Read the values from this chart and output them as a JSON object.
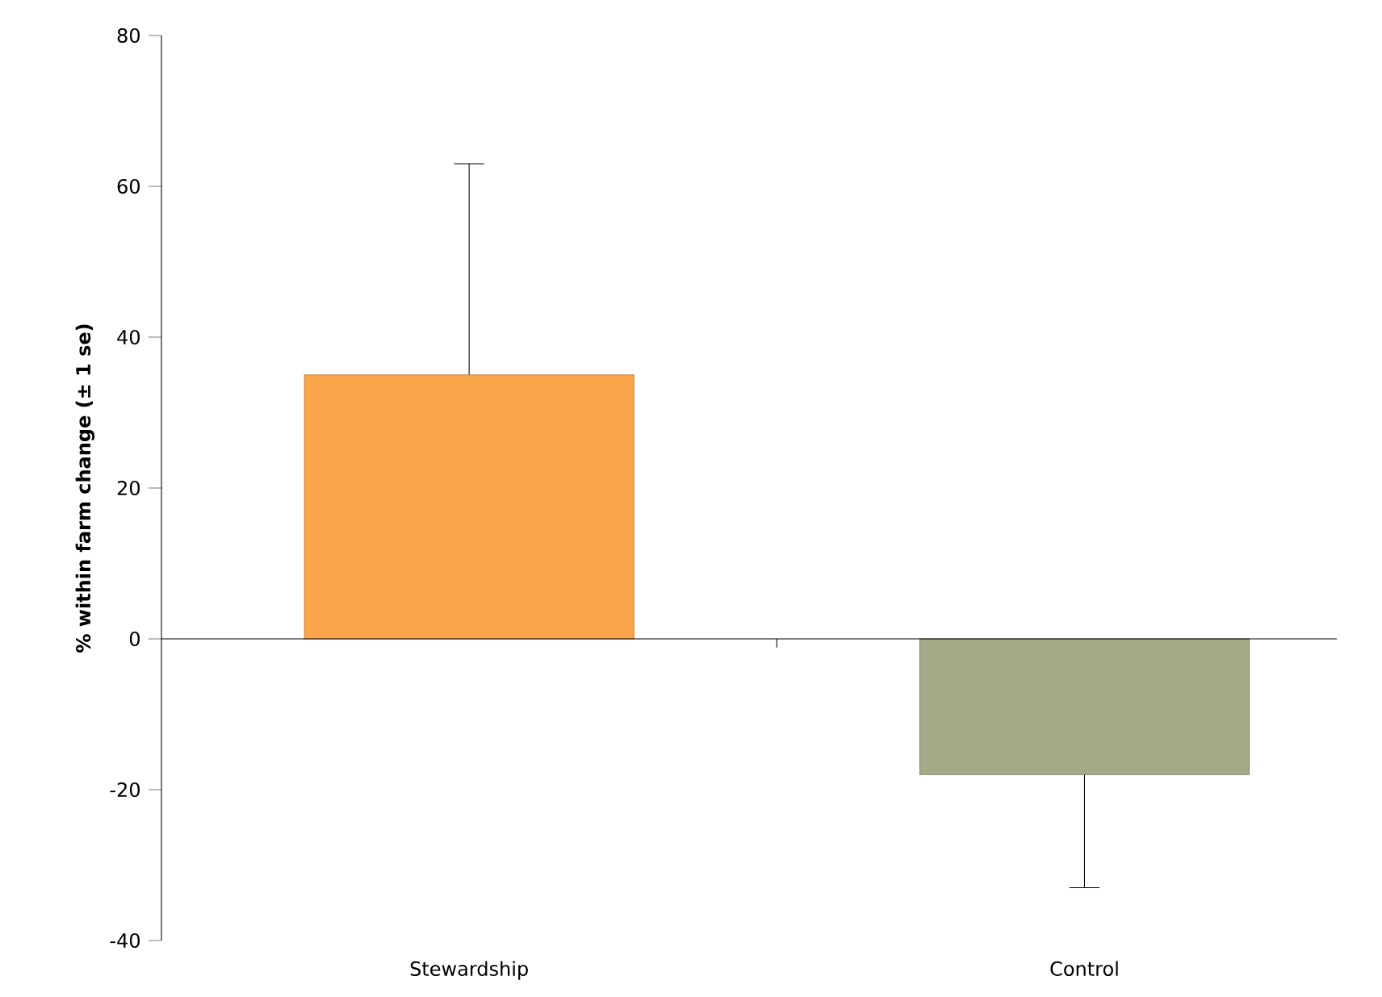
{
  "chart_data": {
    "type": "bar",
    "ylabel": "% within farm change (± 1 se)",
    "categories": [
      "Stewardship",
      "Control"
    ],
    "values": [
      35,
      -18
    ],
    "colors": [
      "#f9a54a",
      "#a3ab88"
    ],
    "errors": [
      [
        35,
        63
      ],
      [
        -33,
        -18
      ]
    ],
    "ylim": [
      -40,
      80
    ],
    "yticks": [
      -40,
      -20,
      0,
      20,
      40,
      60,
      80
    ]
  }
}
